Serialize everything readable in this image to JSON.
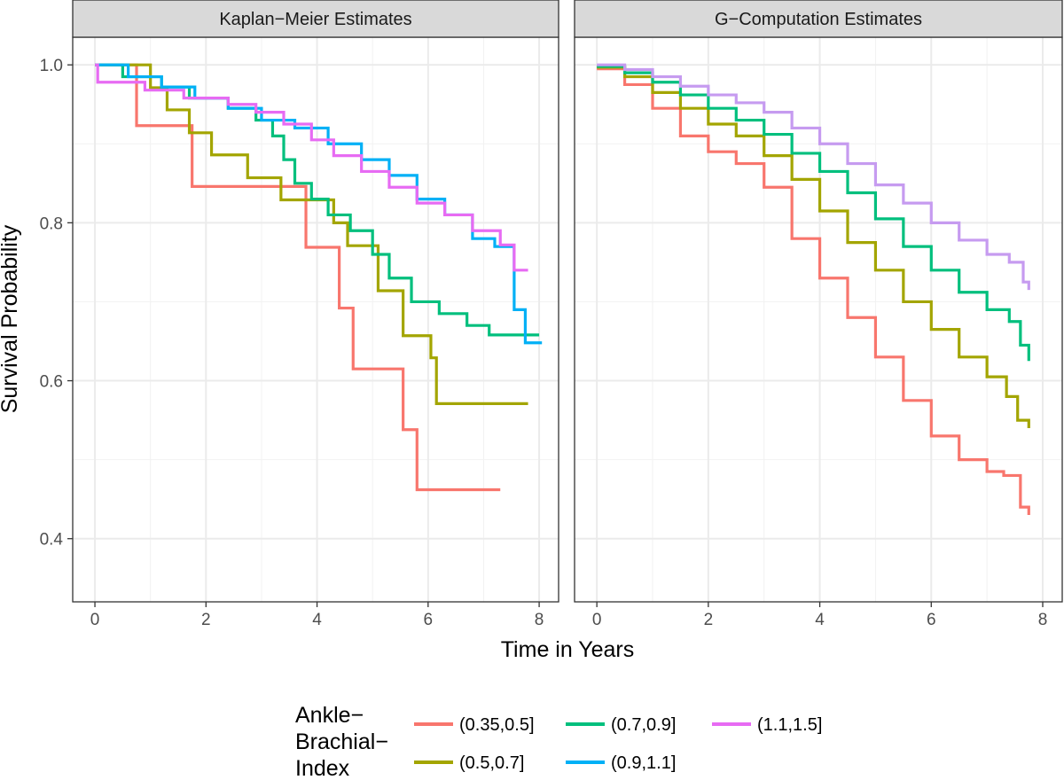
{
  "chart_data": {
    "type": "line",
    "step": true,
    "xlabel": "Time in Years",
    "ylabel": "Survival Probability",
    "xlim": [
      -0.4,
      8.35
    ],
    "ylim": [
      0.32,
      1.035
    ],
    "x_ticks": [
      0,
      2,
      4,
      6,
      8
    ],
    "y_ticks": [
      0.4,
      0.6,
      0.8,
      1.0
    ],
    "y_tick_labels": [
      "0.4",
      "0.6",
      "0.8",
      "1.0"
    ],
    "grid": true,
    "legend": {
      "title_lines": [
        "Ankle−",
        "Brachial−",
        "Index"
      ],
      "position": "bottom",
      "entries": [
        {
          "label": "(0.35,0.5]",
          "color": "#F8766D"
        },
        {
          "label": "(0.5,0.7]",
          "color": "#A3A500"
        },
        {
          "label": "(0.7,0.9]",
          "color": "#00BF7D"
        },
        {
          "label": "(0.9,1.1]",
          "color": "#00B0F6"
        },
        {
          "label": "(1.1,1.5]",
          "color": "#E76BF3"
        }
      ]
    },
    "panels": [
      {
        "title": "Kaplan−Meier Estimates",
        "series": [
          {
            "name": "(0.35,0.5]",
            "color": "#F8766D",
            "x": [
              0,
              0.75,
              1.75,
              3.8,
              4.4,
              4.65,
              5.55,
              5.8,
              7.3
            ],
            "y": [
              1.0,
              0.923,
              0.846,
              0.769,
              0.692,
              0.615,
              0.538,
              0.462,
              0.462
            ]
          },
          {
            "name": "(0.5,0.7]",
            "color": "#A3A500",
            "x": [
              0,
              1.0,
              1.3,
              1.7,
              2.1,
              2.75,
              3.35,
              4.3,
              4.55,
              5.1,
              5.55,
              6.05,
              6.15,
              7.8
            ],
            "y": [
              1.0,
              0.971,
              0.943,
              0.914,
              0.886,
              0.857,
              0.829,
              0.8,
              0.771,
              0.714,
              0.657,
              0.629,
              0.571,
              0.571
            ]
          },
          {
            "name": "(0.7,0.9]",
            "color": "#00BF7D",
            "x": [
              0,
              0.5,
              1.2,
              1.7,
              2.4,
              2.9,
              3.2,
              3.4,
              3.6,
              3.9,
              4.2,
              4.6,
              5.0,
              5.3,
              5.7,
              6.2,
              6.7,
              7.1,
              8.0
            ],
            "y": [
              1.0,
              0.985,
              0.972,
              0.958,
              0.945,
              0.93,
              0.91,
              0.88,
              0.85,
              0.83,
              0.81,
              0.79,
              0.76,
              0.73,
              0.7,
              0.685,
              0.67,
              0.658,
              0.658
            ]
          },
          {
            "name": "(0.9,1.1]",
            "color": "#00B0F6",
            "x": [
              0,
              0.6,
              1.2,
              1.8,
              2.4,
              3.0,
              3.6,
              4.2,
              4.8,
              5.3,
              5.8,
              6.3,
              6.8,
              7.2,
              7.55,
              7.75,
              8.05
            ],
            "y": [
              1.0,
              0.985,
              0.972,
              0.958,
              0.945,
              0.93,
              0.92,
              0.9,
              0.88,
              0.86,
              0.83,
              0.81,
              0.78,
              0.77,
              0.69,
              0.648,
              0.648
            ]
          },
          {
            "name": "(1.1,1.5]",
            "color": "#E76BF3",
            "x": [
              0,
              0.05,
              0.9,
              1.6,
              2.4,
              2.9,
              3.4,
              3.9,
              4.3,
              4.8,
              5.3,
              5.8,
              6.3,
              6.8,
              7.3,
              7.55,
              7.8
            ],
            "y": [
              1.0,
              0.978,
              0.968,
              0.958,
              0.95,
              0.94,
              0.925,
              0.905,
              0.885,
              0.865,
              0.845,
              0.825,
              0.81,
              0.79,
              0.772,
              0.74,
              0.74
            ]
          }
        ]
      },
      {
        "title": "G−Computation Estimates",
        "series": [
          {
            "name": "(0.35,0.5]",
            "color": "#F8766D",
            "x": [
              0,
              0.5,
              1.0,
              1.5,
              2.0,
              2.5,
              3.0,
              3.5,
              4.0,
              4.5,
              5.0,
              5.5,
              6.0,
              6.5,
              7.0,
              7.3,
              7.6,
              7.75
            ],
            "y": [
              0.995,
              0.975,
              0.945,
              0.91,
              0.89,
              0.875,
              0.845,
              0.78,
              0.73,
              0.68,
              0.63,
              0.575,
              0.53,
              0.5,
              0.485,
              0.48,
              0.44,
              0.43
            ]
          },
          {
            "name": "(0.5,0.7]",
            "color": "#A3A500",
            "x": [
              0,
              0.5,
              1.0,
              1.5,
              2.0,
              2.5,
              3.0,
              3.5,
              4.0,
              4.5,
              5.0,
              5.5,
              6.0,
              6.5,
              7.0,
              7.35,
              7.55,
              7.75
            ],
            "y": [
              0.997,
              0.985,
              0.965,
              0.945,
              0.925,
              0.91,
              0.885,
              0.855,
              0.815,
              0.775,
              0.74,
              0.7,
              0.665,
              0.63,
              0.605,
              0.58,
              0.55,
              0.54
            ]
          },
          {
            "name": "(0.7,0.9]",
            "color": "#00BF7D",
            "x": [
              0,
              0.5,
              1.0,
              1.5,
              2.0,
              2.5,
              3.0,
              3.5,
              4.0,
              4.5,
              5.0,
              5.5,
              6.0,
              6.5,
              7.0,
              7.4,
              7.6,
              7.75
            ],
            "y": [
              0.998,
              0.99,
              0.978,
              0.962,
              0.945,
              0.93,
              0.912,
              0.888,
              0.865,
              0.838,
              0.805,
              0.77,
              0.74,
              0.712,
              0.69,
              0.675,
              0.645,
              0.625
            ]
          },
          {
            "name": "(1.1,1.5]",
            "color": "#C69BF0",
            "x": [
              0,
              0.5,
              1.0,
              1.5,
              2.0,
              2.5,
              3.0,
              3.5,
              4.0,
              4.5,
              5.0,
              5.5,
              6.0,
              6.5,
              7.0,
              7.4,
              7.65,
              7.75
            ],
            "y": [
              1.0,
              0.994,
              0.985,
              0.973,
              0.962,
              0.952,
              0.94,
              0.92,
              0.9,
              0.875,
              0.848,
              0.825,
              0.8,
              0.778,
              0.76,
              0.75,
              0.725,
              0.715
            ]
          }
        ]
      }
    ]
  }
}
